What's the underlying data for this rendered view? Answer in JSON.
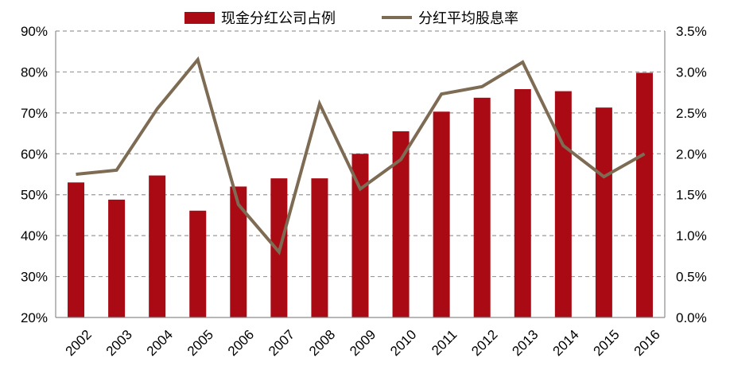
{
  "chart_data": {
    "type": "bar",
    "categories": [
      "2002",
      "2003",
      "2004",
      "2005",
      "2006",
      "2007",
      "2008",
      "2009",
      "2010",
      "2011",
      "2012",
      "2013",
      "2014",
      "2015",
      "2016"
    ],
    "series": [
      {
        "name": "现金分红公司占例",
        "type": "bar",
        "axis": "left",
        "color": "#AA0A14",
        "values": [
          53.0,
          48.8,
          54.7,
          46.1,
          52.0,
          54.0,
          54.0,
          60.0,
          65.5,
          70.3,
          73.7,
          75.8,
          75.3,
          71.3,
          79.8
        ]
      },
      {
        "name": "分红平均股息率",
        "type": "line",
        "axis": "right",
        "color": "#7D6B53",
        "values": [
          1.75,
          1.8,
          2.55,
          3.15,
          1.38,
          0.8,
          2.61,
          1.57,
          1.93,
          2.73,
          2.82,
          3.12,
          2.1,
          1.72,
          2.0
        ]
      }
    ],
    "y_left": {
      "min": 20,
      "max": 90,
      "step": 10,
      "ticks": [
        "20%",
        "30%",
        "40%",
        "50%",
        "60%",
        "70%",
        "80%",
        "90%"
      ]
    },
    "y_right": {
      "min": 0,
      "max": 3.5,
      "step": 0.5,
      "ticks": [
        "0.0%",
        "0.5%",
        "1.0%",
        "1.5%",
        "2.0%",
        "2.5%",
        "3.0%",
        "3.5%"
      ]
    },
    "grid": true,
    "legend_position": "top-center"
  }
}
